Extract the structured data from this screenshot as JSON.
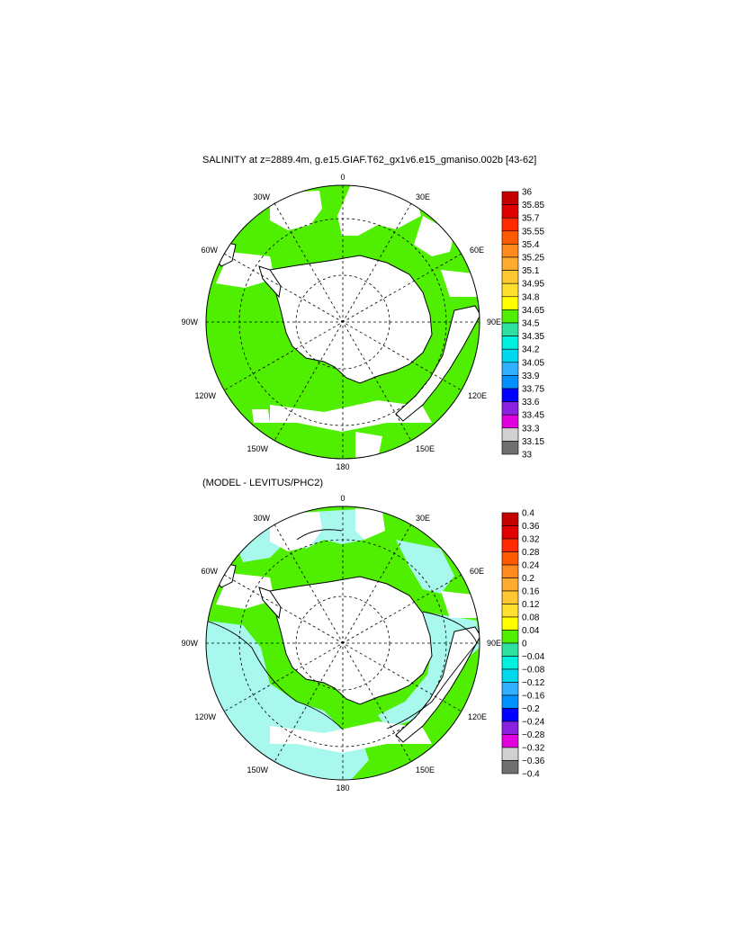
{
  "panel1": {
    "title": "SALINITY at z=2889.4m, g.e15.GIAF.T62_gx1v6.e15_gmaniso.002b [43-62]",
    "lon_labels": {
      "top": "0",
      "tr": "30E",
      "r1": "60E",
      "right": "90E",
      "r2": "120E",
      "br": "150E",
      "bottom": "180",
      "bl": "150W",
      "l2": "120W",
      "left": "90W",
      "l1": "60W",
      "tl": "30W"
    },
    "colorbar": {
      "labels": [
        "36",
        "35.85",
        "35.7",
        "35.55",
        "35.4",
        "35.25",
        "35.1",
        "34.95",
        "34.8",
        "34.65",
        "34.5",
        "34.35",
        "34.2",
        "34.05",
        "33.9",
        "33.75",
        "33.6",
        "33.45",
        "33.3",
        "33.15",
        "33"
      ]
    }
  },
  "panel2": {
    "title": "(MODEL - LEVITUS/PHC2)",
    "lon_labels": {
      "top": "0",
      "tr": "30E",
      "r1": "60E",
      "right": "90E",
      "r2": "120E",
      "br": "150E",
      "bottom": "180",
      "bl": "150W",
      "l2": "120W",
      "left": "90W",
      "l1": "60W",
      "tl": "30W"
    },
    "colorbar": {
      "labels": [
        "0.4",
        "0.36",
        "0.32",
        "0.28",
        "0.24",
        "0.2",
        "0.16",
        "0.12",
        "0.08",
        "0.04",
        "0",
        "−0.04",
        "−0.08",
        "−0.12",
        "−0.16",
        "−0.2",
        "−0.24",
        "−0.28",
        "−0.32",
        "−0.36",
        "−0.4"
      ]
    },
    "colors": [
      "#c40000",
      "#e00000",
      "#ff2a00",
      "#ff5a00",
      "#ff8a1e",
      "#ffaa30",
      "#ffc832",
      "#ffe030",
      "#ffff00",
      "#50ee00",
      "#30e0a0",
      "#00f0e0",
      "#00d8ee",
      "#30b0ff",
      "#0090ff",
      "#0000ff",
      "#8a20e0",
      "#e000e0",
      "#d0d0d0",
      "#707070"
    ]
  },
  "colors": {
    "palette": [
      "#c40000",
      "#e00000",
      "#ff2a00",
      "#ff5a00",
      "#ff8a1e",
      "#ffaa30",
      "#ffc832",
      "#ffe030",
      "#ffff00",
      "#50ee00",
      "#30e0a0",
      "#00f0e0",
      "#00d8ee",
      "#30b0ff",
      "#0090ff",
      "#0000ff",
      "#8a20e0",
      "#e000e0",
      "#d0d0d0",
      "#707070"
    ],
    "land": "#ffffff",
    "ocean_panel1": "#50ee00",
    "ocean_panel2_cyan": "#a8f8ee",
    "ocean_panel2_green": "#50ee00"
  }
}
